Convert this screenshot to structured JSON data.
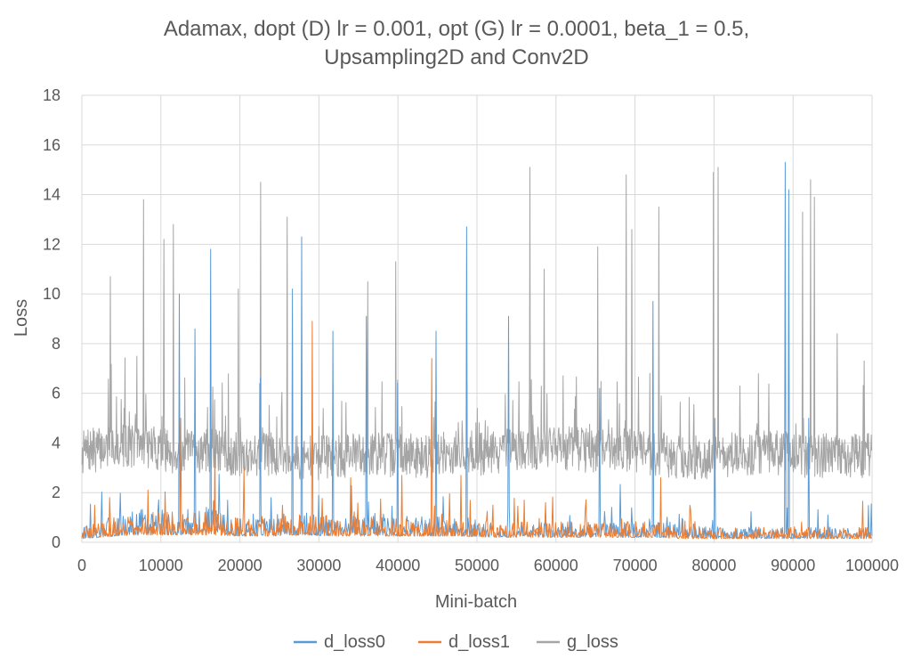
{
  "chart_data": {
    "type": "line",
    "title_lines": [
      "Adamax, dopt (D) lr = 0.001, opt (G) lr = 0.0001, beta_1 = 0.5,",
      "Upsampling2D and Conv2D"
    ],
    "xlabel": "Mini-batch",
    "ylabel": "Loss",
    "xlim": [
      0,
      100000
    ],
    "ylim": [
      0,
      18
    ],
    "x_ticks": [
      "0",
      "10000",
      "20000",
      "30000",
      "40000",
      "50000",
      "60000",
      "70000",
      "80000",
      "90000",
      "100000"
    ],
    "y_ticks": [
      "0",
      "2",
      "4",
      "6",
      "8",
      "10",
      "12",
      "14",
      "16",
      "18"
    ],
    "grid": "vertical and horizontal major gridlines",
    "legend_position": "bottom",
    "series": [
      {
        "name": "d_loss0",
        "color": "#5b9bd5",
        "x": [
          0,
          4000,
          8000,
          12000,
          16000,
          20000,
          24000,
          28000,
          32000,
          36000,
          40000,
          44000,
          48000,
          52000,
          56000,
          60000,
          64000,
          68000,
          72000,
          76000,
          80000,
          84000,
          88000,
          92000,
          96000,
          100000
        ],
        "values": [
          0.3,
          0.5,
          0.7,
          0.6,
          0.7,
          0.5,
          0.6,
          0.6,
          0.5,
          0.6,
          0.5,
          0.5,
          0.5,
          0.4,
          0.5,
          0.4,
          0.4,
          0.4,
          0.4,
          0.4,
          0.3,
          0.3,
          0.3,
          0.3,
          0.3,
          0.3
        ],
        "spikes": [
          {
            "x": 12300,
            "y": 10.0
          },
          {
            "x": 14300,
            "y": 8.6
          },
          {
            "x": 16300,
            "y": 11.8
          },
          {
            "x": 22600,
            "y": 6.6
          },
          {
            "x": 26600,
            "y": 10.2
          },
          {
            "x": 27800,
            "y": 12.3
          },
          {
            "x": 31800,
            "y": 8.5
          },
          {
            "x": 36000,
            "y": 9.1
          },
          {
            "x": 40000,
            "y": 6.4
          },
          {
            "x": 44800,
            "y": 8.5
          },
          {
            "x": 48700,
            "y": 12.7
          },
          {
            "x": 54000,
            "y": 9.1
          },
          {
            "x": 65500,
            "y": 6.2
          },
          {
            "x": 72300,
            "y": 9.7
          },
          {
            "x": 80100,
            "y": 5.0
          },
          {
            "x": 89000,
            "y": 15.3
          },
          {
            "x": 89500,
            "y": 14.2
          },
          {
            "x": 92000,
            "y": 5.0
          }
        ]
      },
      {
        "name": "d_loss1",
        "color": "#ed7d31",
        "x": [
          0,
          4000,
          8000,
          12000,
          16000,
          20000,
          24000,
          28000,
          32000,
          36000,
          40000,
          44000,
          48000,
          52000,
          56000,
          60000,
          64000,
          68000,
          72000,
          76000,
          80000,
          84000,
          88000,
          92000,
          96000,
          100000
        ],
        "values": [
          0.3,
          0.5,
          0.6,
          0.6,
          0.6,
          0.5,
          0.5,
          0.6,
          0.5,
          0.5,
          0.5,
          0.5,
          0.5,
          0.4,
          0.4,
          0.4,
          0.4,
          0.4,
          0.4,
          0.3,
          0.3,
          0.3,
          0.3,
          0.3,
          0.3,
          0.3
        ],
        "spikes": [
          {
            "x": 3500,
            "y": 1.8
          },
          {
            "x": 12500,
            "y": 5.0
          },
          {
            "x": 16800,
            "y": 3.8
          },
          {
            "x": 20500,
            "y": 3.0
          },
          {
            "x": 29200,
            "y": 8.9
          },
          {
            "x": 34000,
            "y": 2.6
          },
          {
            "x": 40500,
            "y": 2.7
          },
          {
            "x": 44300,
            "y": 7.4
          },
          {
            "x": 48000,
            "y": 2.7
          },
          {
            "x": 52000,
            "y": 1.5
          },
          {
            "x": 56000,
            "y": 1.7
          },
          {
            "x": 73300,
            "y": 2.6
          },
          {
            "x": 77000,
            "y": 1.3
          }
        ]
      },
      {
        "name": "g_loss",
        "color": "#a5a5a5",
        "x": [
          0,
          4000,
          8000,
          12000,
          16000,
          20000,
          24000,
          28000,
          32000,
          36000,
          40000,
          44000,
          48000,
          52000,
          56000,
          60000,
          64000,
          68000,
          72000,
          76000,
          80000,
          84000,
          88000,
          92000,
          96000,
          100000
        ],
        "values": [
          3.6,
          3.9,
          3.9,
          3.6,
          3.7,
          3.5,
          3.6,
          3.4,
          3.4,
          3.6,
          3.5,
          3.5,
          3.6,
          3.6,
          3.8,
          3.8,
          3.7,
          3.8,
          3.6,
          3.4,
          3.4,
          3.6,
          3.6,
          3.5,
          3.5,
          3.5
        ],
        "spikes": [
          {
            "x": 3600,
            "y": 10.7
          },
          {
            "x": 7800,
            "y": 13.8
          },
          {
            "x": 10400,
            "y": 12.2
          },
          {
            "x": 11600,
            "y": 12.8
          },
          {
            "x": 19800,
            "y": 10.2
          },
          {
            "x": 22600,
            "y": 14.5
          },
          {
            "x": 26000,
            "y": 13.1
          },
          {
            "x": 36200,
            "y": 10.5
          },
          {
            "x": 39700,
            "y": 11.3
          },
          {
            "x": 56700,
            "y": 15.1
          },
          {
            "x": 58500,
            "y": 11.0
          },
          {
            "x": 65300,
            "y": 11.9
          },
          {
            "x": 68900,
            "y": 14.8
          },
          {
            "x": 69600,
            "y": 12.6
          },
          {
            "x": 73000,
            "y": 13.5
          },
          {
            "x": 79900,
            "y": 14.9
          },
          {
            "x": 80500,
            "y": 15.1
          },
          {
            "x": 91200,
            "y": 13.3
          },
          {
            "x": 92200,
            "y": 14.6
          },
          {
            "x": 92700,
            "y": 13.9
          },
          {
            "x": 95600,
            "y": 8.4
          },
          {
            "x": 99000,
            "y": 7.3
          }
        ]
      }
    ]
  }
}
